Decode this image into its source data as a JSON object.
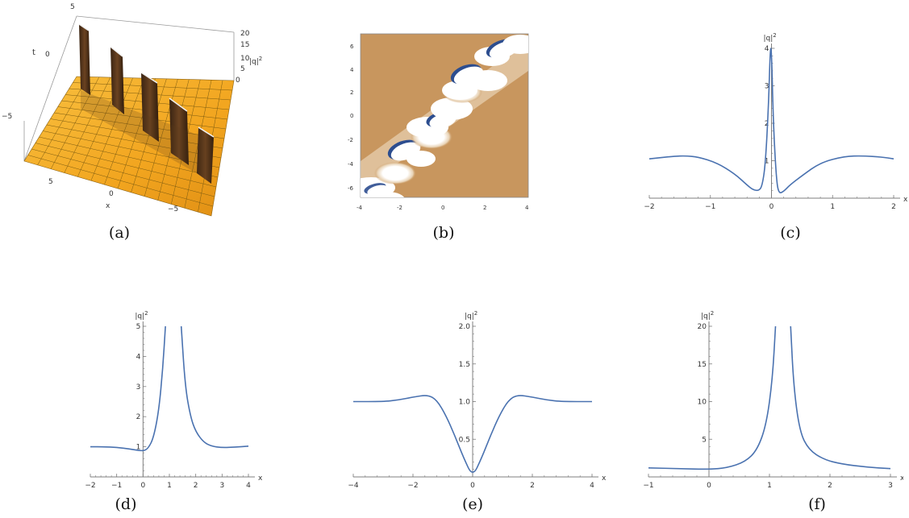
{
  "captions": [
    "(a)",
    "(b)",
    "(c)",
    "(d)",
    "(e)",
    "(f)"
  ],
  "colors": {
    "curve": "#4a72b0",
    "axis": "#7f7f7f",
    "surface": "#f2a51f",
    "surface_dark": "#5a3a1c",
    "density_bg": "#c8965e",
    "density_blob": "#ffffff",
    "density_edge": "#2c4d8f"
  },
  "panel_a": {
    "type": "3d-surface",
    "t_label": "t",
    "x_label": "x",
    "z_label": "|q|",
    "z_sup": "2",
    "t_ticks": [
      "5",
      "0",
      "−5"
    ],
    "x_ticks": [
      "5",
      "0",
      "−5"
    ],
    "z_ticks": [
      "20",
      "15",
      "10",
      "5",
      "0"
    ]
  },
  "panel_b": {
    "type": "density",
    "x_ticks": [
      "-4",
      "-2",
      "0",
      "2",
      "4"
    ],
    "y_ticks": [
      "6",
      "4",
      "2",
      "0",
      "-2",
      "-4",
      "-6"
    ]
  },
  "chart_data": [
    {
      "id": "c",
      "type": "line",
      "xlabel": "x",
      "ylabel": "|q|",
      "ylabel_sup": "2",
      "xlim": [
        -2,
        2
      ],
      "ylim": [
        0,
        4
      ],
      "x_ticks": [
        -2,
        -1,
        0,
        1,
        2
      ],
      "x_tick_labels": [
        "−2",
        "−1",
        "0",
        "1",
        "2"
      ],
      "y_ticks": [
        1,
        2,
        3,
        4
      ],
      "y_tick_labels": [
        "1",
        "2",
        "3",
        "4"
      ],
      "x": [
        -2,
        -1.6,
        -1.4,
        -1.2,
        -0.9,
        -0.6,
        -0.4,
        -0.3,
        -0.2,
        -0.15,
        -0.1,
        -0.05,
        -0.02,
        0,
        0.03,
        0.08,
        0.12,
        0.2,
        0.3,
        0.5,
        0.8,
        1.2,
        1.5,
        1.8,
        2
      ],
      "y": [
        1.05,
        1.12,
        1.13,
        1.1,
        0.95,
        0.65,
        0.35,
        0.22,
        0.2,
        0.35,
        0.9,
        2.4,
        4.0,
        4.0,
        2.0,
        0.5,
        0.12,
        0.18,
        0.35,
        0.6,
        0.95,
        1.12,
        1.13,
        1.1,
        1.05
      ]
    },
    {
      "id": "d",
      "type": "line",
      "xlabel": "x",
      "ylabel": "|q|",
      "ylabel_sup": "2",
      "xlim": [
        -2,
        4
      ],
      "ylim": [
        0,
        5
      ],
      "x_ticks": [
        -2,
        -1,
        0,
        1,
        2,
        3,
        4
      ],
      "x_tick_labels": [
        "−2",
        "−1",
        "0",
        "1",
        "2",
        "3",
        "4"
      ],
      "y_ticks": [
        1,
        2,
        3,
        4,
        5
      ],
      "y_tick_labels": [
        "1",
        "2",
        "3",
        "4",
        "5"
      ],
      "x": [
        -2,
        -1.5,
        -1,
        -0.5,
        0,
        0.2,
        0.4,
        0.6,
        0.75,
        0.85,
        null,
        1.45,
        1.6,
        1.8,
        2.0,
        2.3,
        2.6,
        3.0,
        3.5,
        4
      ],
      "y": [
        1.0,
        1.0,
        0.98,
        0.93,
        0.85,
        0.95,
        1.3,
        2.2,
        3.6,
        5.0,
        null,
        5.0,
        3.0,
        2.0,
        1.5,
        1.15,
        1.02,
        0.97,
        0.99,
        1.02
      ]
    },
    {
      "id": "e",
      "type": "line",
      "xlabel": "x",
      "ylabel": "|q|",
      "ylabel_sup": "2",
      "xlim": [
        -4,
        4
      ],
      "ylim": [
        0,
        2
      ],
      "x_ticks": [
        -4,
        -2,
        0,
        2,
        4
      ],
      "x_tick_labels": [
        "−4",
        "−2",
        "0",
        "2",
        "4"
      ],
      "y_ticks": [
        0.5,
        1.0,
        1.5,
        2.0
      ],
      "y_tick_labels": [
        "0.5",
        "1.0",
        "1.5",
        "2.0"
      ],
      "x": [
        -4,
        -3,
        -2.5,
        -2,
        -1.5,
        -1.2,
        -0.9,
        -0.6,
        -0.3,
        0,
        0.3,
        0.6,
        0.9,
        1.2,
        1.5,
        2,
        2.5,
        3,
        4
      ],
      "y": [
        1.0,
        1.0,
        1.02,
        1.06,
        1.09,
        1.02,
        0.82,
        0.55,
        0.25,
        0.0,
        0.25,
        0.55,
        0.82,
        1.02,
        1.09,
        1.06,
        1.02,
        1.0,
        1.0
      ]
    },
    {
      "id": "f",
      "type": "line",
      "xlabel": "x",
      "ylabel": "|q|",
      "ylabel_sup": "2",
      "xlim": [
        -1,
        3
      ],
      "ylim": [
        0,
        20
      ],
      "x_ticks": [
        -1,
        0,
        1,
        2,
        3
      ],
      "x_tick_labels": [
        "−1",
        "0",
        "1",
        "2",
        "3"
      ],
      "y_ticks": [
        5,
        10,
        15,
        20
      ],
      "y_tick_labels": [
        "5",
        "10",
        "15",
        "20"
      ],
      "x": [
        -1,
        -0.5,
        0,
        0.3,
        0.6,
        0.8,
        0.95,
        1.05,
        1.1,
        null,
        1.35,
        1.4,
        1.5,
        1.65,
        1.9,
        2.2,
        2.6,
        3
      ],
      "y": [
        1.2,
        1.1,
        1.0,
        1.2,
        2.0,
        3.6,
        7.0,
        13.0,
        20.0,
        null,
        20.0,
        12.0,
        6.0,
        3.6,
        2.3,
        1.7,
        1.3,
        1.1
      ]
    }
  ]
}
